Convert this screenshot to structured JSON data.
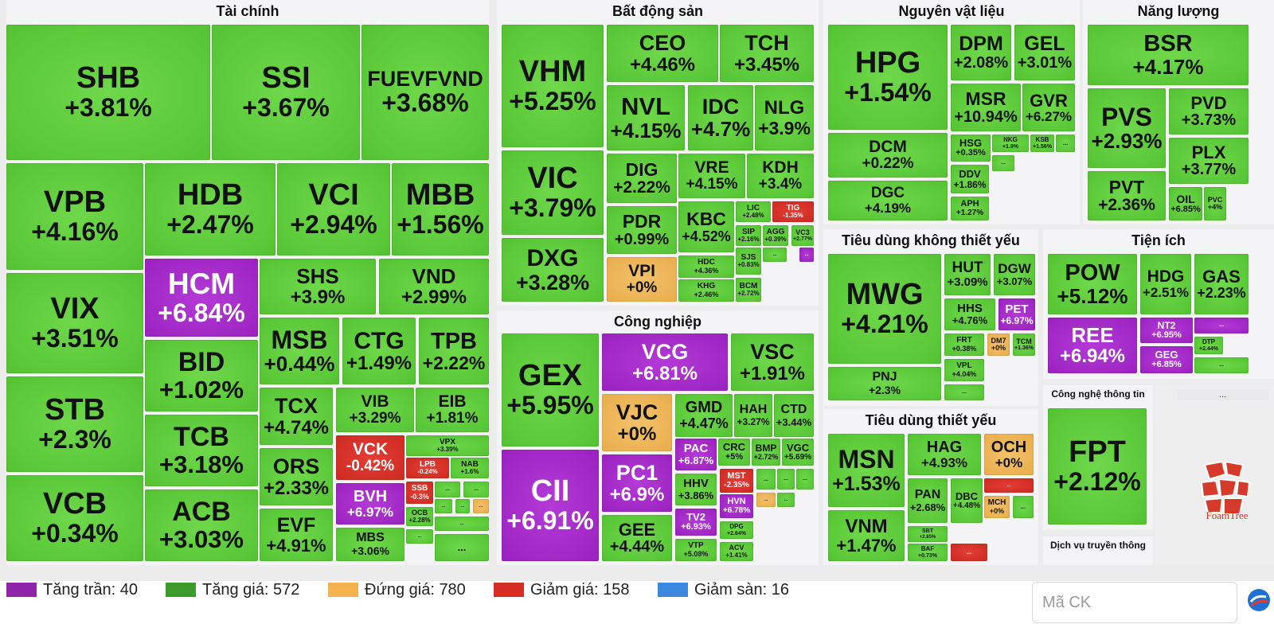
{
  "legend": [
    {
      "label": "Tăng trần: 40",
      "color": "#8e24aa"
    },
    {
      "label": "Tăng giá: 572",
      "color": "#3d9a2c"
    },
    {
      "label": "Đứng giá: 780",
      "color": "#f2b24c"
    },
    {
      "label": "Giảm giá: 158",
      "color": "#d62e25"
    },
    {
      "label": "Giảm sàn: 16",
      "color": "#3b88e0"
    }
  ],
  "search": {
    "placeholder": "Mã CK"
  },
  "brand": {
    "name": "FoamTree",
    "more": "..."
  },
  "colors": {
    "ceil": "#9b22c0",
    "up": "#54c332",
    "flat": "#e9ad4c",
    "down": "#cf2a22",
    "floor": "#3b88e0"
  },
  "groups": [
    {
      "title": "Tài chính",
      "tiles": [
        [
          "SHB",
          "+3.81%",
          "up"
        ],
        [
          "SSI",
          "+3.67%",
          "up"
        ],
        [
          "FUEVFVND",
          "+3.68%",
          "up"
        ],
        [
          "VPB",
          "+4.16%",
          "up"
        ],
        [
          "HDB",
          "+2.47%",
          "up"
        ],
        [
          "VCI",
          "+2.94%",
          "up"
        ],
        [
          "MBB",
          "+1.56%",
          "up"
        ],
        [
          "VIX",
          "+3.51%",
          "up"
        ],
        [
          "HCM",
          "+6.84%",
          "ceil"
        ],
        [
          "SHS",
          "+3.9%",
          "up"
        ],
        [
          "VND",
          "+2.99%",
          "up"
        ],
        [
          "STB",
          "+2.3%",
          "up"
        ],
        [
          "BID",
          "+1.02%",
          "up"
        ],
        [
          "MSB",
          "+0.44%",
          "up"
        ],
        [
          "CTG",
          "+1.49%",
          "up"
        ],
        [
          "TPB",
          "+2.22%",
          "up"
        ],
        [
          "VCB",
          "+0.34%",
          "up"
        ],
        [
          "TCB",
          "+3.18%",
          "up"
        ],
        [
          "ACB",
          "+3.03%",
          "up"
        ],
        [
          "TCX",
          "+4.74%",
          "up"
        ],
        [
          "ORS",
          "+2.33%",
          "up"
        ],
        [
          "EVF",
          "+4.91%",
          "up"
        ],
        [
          "VIB",
          "+3.29%",
          "up"
        ],
        [
          "EIB",
          "+1.81%",
          "up"
        ],
        [
          "VCK",
          "-0.42%",
          "down"
        ],
        [
          "VPX",
          "+3.39%",
          "up"
        ],
        [
          "BVH",
          "+6.97%",
          "ceil"
        ],
        [
          "LPB",
          "-0.24%",
          "down"
        ],
        [
          "NAB",
          "+1.6%",
          "up"
        ],
        [
          "SSB",
          "-0.3%",
          "down"
        ],
        [
          "OCB",
          "+2.28%",
          "up"
        ],
        [
          "MBS",
          "+3.06%",
          "up"
        ],
        [
          "...",
          "",
          "up"
        ],
        [
          "...",
          "",
          "up"
        ],
        [
          "...",
          "",
          "up"
        ],
        [
          "...",
          "",
          "up"
        ],
        [
          "...",
          "",
          "flat"
        ],
        [
          "...",
          "",
          "up"
        ],
        [
          "...",
          "",
          "up"
        ],
        [
          "...",
          "",
          "up"
        ]
      ]
    },
    {
      "title": "Bất động sản",
      "tiles": [
        [
          "VHM",
          "+5.25%",
          "up"
        ],
        [
          "CEO",
          "+4.46%",
          "up"
        ],
        [
          "TCH",
          "+3.45%",
          "up"
        ],
        [
          "NVL",
          "+4.15%",
          "up"
        ],
        [
          "IDC",
          "+4.7%",
          "up"
        ],
        [
          "NLG",
          "+3.9%",
          "up"
        ],
        [
          "VIC",
          "+3.79%",
          "up"
        ],
        [
          "DIG",
          "+2.22%",
          "up"
        ],
        [
          "VRE",
          "+4.15%",
          "up"
        ],
        [
          "KDH",
          "+3.4%",
          "up"
        ],
        [
          "PDR",
          "+0.99%",
          "up"
        ],
        [
          "KBC",
          "+4.52%",
          "up"
        ],
        [
          "LIC",
          "+2.48%",
          "up"
        ],
        [
          "TIG",
          "-1.35%",
          "down"
        ],
        [
          "SIP",
          "+2.16%",
          "up"
        ],
        [
          "AGG",
          "+0.39%",
          "up"
        ],
        [
          "VC3",
          "+2.77%",
          "up"
        ],
        [
          "DXG",
          "+3.28%",
          "up"
        ],
        [
          "VPI",
          "+0%",
          "flat"
        ],
        [
          "HDC",
          "+4.36%",
          "up"
        ],
        [
          "SJS",
          "+0.83%",
          "up"
        ],
        [
          "KHG",
          "+2.46%",
          "up"
        ],
        [
          "BCM",
          "+2.72%",
          "up"
        ],
        [
          "...",
          "",
          "up"
        ],
        [
          "...",
          "",
          "ceil"
        ]
      ]
    },
    {
      "title": "Nguyên vật liệu",
      "tiles": [
        [
          "HPG",
          "+1.54%",
          "up"
        ],
        [
          "DPM",
          "+2.08%",
          "up"
        ],
        [
          "GEL",
          "+3.01%",
          "up"
        ],
        [
          "MSR",
          "+10.94%",
          "up"
        ],
        [
          "GVR",
          "+6.27%",
          "up"
        ],
        [
          "DCM",
          "+0.22%",
          "up"
        ],
        [
          "HSG",
          "+0.35%",
          "up"
        ],
        [
          "NKG",
          "+1.9%",
          "up"
        ],
        [
          "KSB",
          "+1.56%",
          "up"
        ],
        [
          "DGC",
          "+4.19%",
          "up"
        ],
        [
          "DDV",
          "+1.86%",
          "up"
        ],
        [
          "APH",
          "+1.27%",
          "up"
        ],
        [
          "...",
          "",
          "up"
        ],
        [
          "...",
          "",
          "up"
        ]
      ]
    },
    {
      "title": "Năng lượng",
      "tiles": [
        [
          "BSR",
          "+4.17%",
          "up"
        ],
        [
          "PVS",
          "+2.93%",
          "up"
        ],
        [
          "PVD",
          "+3.73%",
          "up"
        ],
        [
          "PLX",
          "+3.77%",
          "up"
        ],
        [
          "PVT",
          "+2.36%",
          "up"
        ],
        [
          "OIL",
          "+6.85%",
          "up"
        ],
        [
          "PVC",
          "+4%",
          "up"
        ]
      ]
    },
    {
      "title": "Tiêu dùng không thiết yếu",
      "tiles": [
        [
          "MWG",
          "+4.21%",
          "up"
        ],
        [
          "HUT",
          "+3.09%",
          "up"
        ],
        [
          "DGW",
          "+3.07%",
          "up"
        ],
        [
          "HHS",
          "+4.76%",
          "up"
        ],
        [
          "PET",
          "+6.97%",
          "ceil"
        ],
        [
          "FRT",
          "+0.38%",
          "up"
        ],
        [
          "DM7",
          "+0%",
          "flat"
        ],
        [
          "TCM",
          "+1.36%",
          "up"
        ],
        [
          "PNJ",
          "+2.3%",
          "up"
        ],
        [
          "VPL",
          "+4.04%",
          "up"
        ],
        [
          "...",
          "",
          "up"
        ]
      ]
    },
    {
      "title": "Tiện ích",
      "tiles": [
        [
          "POW",
          "+5.12%",
          "up"
        ],
        [
          "HDG",
          "+2.51%",
          "up"
        ],
        [
          "GAS",
          "+2.23%",
          "up"
        ],
        [
          "REE",
          "+6.94%",
          "ceil"
        ],
        [
          "NT2",
          "+6.95%",
          "ceil"
        ],
        [
          "...",
          "",
          "ceil"
        ],
        [
          "GEG",
          "+6.85%",
          "ceil"
        ],
        [
          "DTP",
          "+2.44%",
          "up"
        ],
        [
          "...",
          "",
          "up"
        ]
      ]
    },
    {
      "title": "Công nghiệp",
      "tiles": [
        [
          "GEX",
          "+5.95%",
          "up"
        ],
        [
          "VCG",
          "+6.81%",
          "ceil"
        ],
        [
          "VSC",
          "+1.91%",
          "up"
        ],
        [
          "VJC",
          "+0%",
          "flat"
        ],
        [
          "GMD",
          "+4.47%",
          "up"
        ],
        [
          "HAH",
          "+3.27%",
          "up"
        ],
        [
          "CTD",
          "+3.44%",
          "up"
        ],
        [
          "CII",
          "+6.91%",
          "ceil"
        ],
        [
          "PC1",
          "+6.9%",
          "ceil"
        ],
        [
          "PAC",
          "+6.87%",
          "ceil"
        ],
        [
          "CRC",
          "+5%",
          "up"
        ],
        [
          "BMP",
          "+2.72%",
          "up"
        ],
        [
          "VGC",
          "+5.69%",
          "up"
        ],
        [
          "HHV",
          "+3.86%",
          "up"
        ],
        [
          "MST",
          "-2.35%",
          "down"
        ],
        [
          "HVN",
          "+6.78%",
          "ceil"
        ],
        [
          "TV2",
          "+6.93%",
          "ceil"
        ],
        [
          "DPG",
          "+2.64%",
          "up"
        ],
        [
          "GEE",
          "+4.44%",
          "up"
        ],
        [
          "VTP",
          "+5.08%",
          "up"
        ],
        [
          "ACV",
          "+1.41%",
          "up"
        ],
        [
          "...",
          "",
          "up"
        ],
        [
          "...",
          "",
          "up"
        ],
        [
          "...",
          "",
          "up"
        ],
        [
          "...",
          "",
          "flat"
        ],
        [
          "...",
          "",
          "up"
        ]
      ]
    },
    {
      "title": "Tiêu dùng thiết yếu",
      "tiles": [
        [
          "MSN",
          "+1.53%",
          "up"
        ],
        [
          "HAG",
          "+4.93%",
          "up"
        ],
        [
          "OCH",
          "+0%",
          "flat"
        ],
        [
          "PAN",
          "+2.68%",
          "up"
        ],
        [
          "DBC",
          "+4.48%",
          "up"
        ],
        [
          "...",
          "",
          "down"
        ],
        [
          "MCH",
          "+0%",
          "flat"
        ],
        [
          "...",
          "",
          "up"
        ],
        [
          "VNM",
          "+1.47%",
          "up"
        ],
        [
          "SBT",
          "+2.85%",
          "up"
        ],
        [
          "BAF",
          "+0.73%",
          "up"
        ],
        [
          "...",
          "",
          "down"
        ]
      ]
    },
    {
      "title": "Công nghệ thông tin",
      "tiles": [
        [
          "FPT",
          "+2.12%",
          "up"
        ]
      ]
    },
    {
      "title": "Dịch vụ truyền thông",
      "tiles": []
    }
  ]
}
